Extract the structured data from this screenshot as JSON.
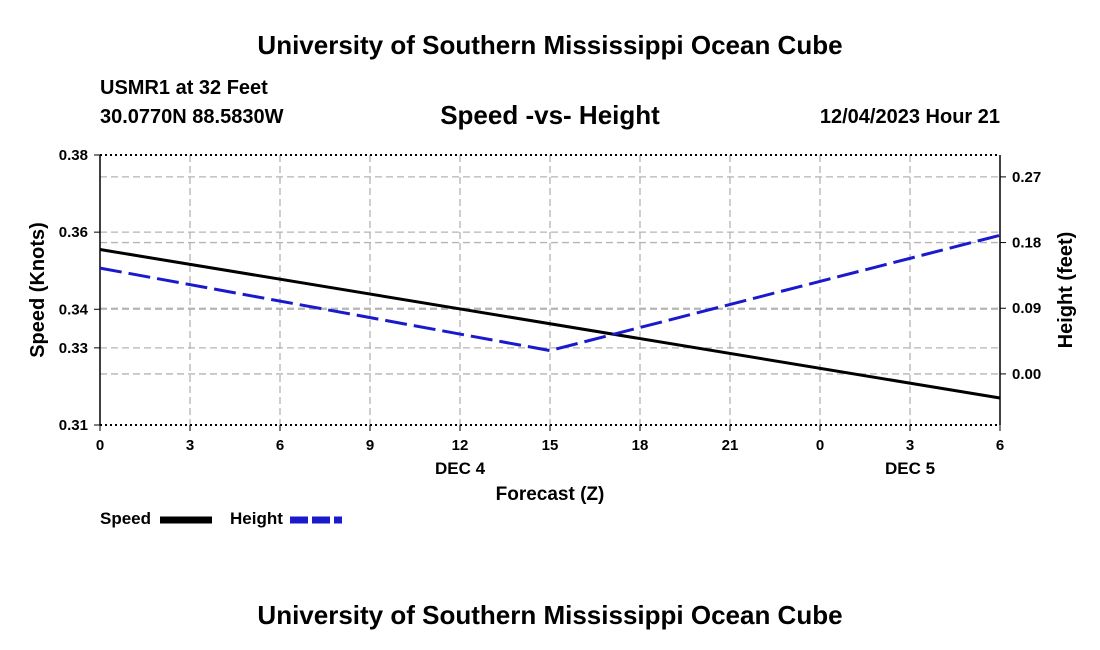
{
  "header": {
    "title": "University of Southern Mississippi Ocean Cube",
    "station": "USMR1 at 32 Feet",
    "coords": "30.0770N  88.5830W",
    "chart_title": "Speed -vs- Height",
    "datetime": "12/04/2023 Hour 21"
  },
  "footer": {
    "title": "University of Southern Mississippi Ocean Cube"
  },
  "legend": {
    "speed_label": "Speed",
    "height_label": "Height"
  },
  "colors": {
    "speed": "#000000",
    "height": "#1a1acc",
    "grid": "#b4b4b4"
  },
  "chart_data": {
    "type": "line",
    "x": [
      0,
      3,
      6,
      9,
      12,
      15,
      18,
      21,
      24,
      27,
      30
    ],
    "x_tick_labels": [
      "0",
      "3",
      "6",
      "9",
      "12",
      "15",
      "18",
      "21",
      "0",
      "3",
      "6"
    ],
    "x_day_labels": [
      {
        "x": 12,
        "label": "DEC 4"
      },
      {
        "x": 27,
        "label": "DEC 5"
      }
    ],
    "xlabel": "Forecast (Z)",
    "xlim": [
      0,
      30
    ],
    "y_left": {
      "label": "Speed (Knots)",
      "ylim": [
        0.31,
        0.38
      ],
      "ticks": [
        0.31,
        0.33,
        0.34,
        0.36,
        0.38
      ],
      "tick_labels": [
        "0.31",
        "0.33",
        "0.34",
        "0.36",
        "0.38"
      ]
    },
    "y_right": {
      "label": "Height (feet)",
      "ylim": [
        -0.07,
        0.3
      ],
      "ticks": [
        0.0,
        0.09,
        0.18,
        0.27
      ],
      "tick_labels": [
        "0.00",
        "0.09",
        "0.18",
        "0.27"
      ]
    },
    "series": [
      {
        "name": "Speed",
        "axis": "left",
        "style": "solid",
        "x": [
          0,
          30
        ],
        "values": [
          0.3555,
          0.317
        ]
      },
      {
        "name": "Height",
        "axis": "right",
        "style": "dashed",
        "x": [
          0,
          15,
          30
        ],
        "values": [
          0.145,
          0.032,
          0.19
        ]
      }
    ],
    "grid": true
  }
}
